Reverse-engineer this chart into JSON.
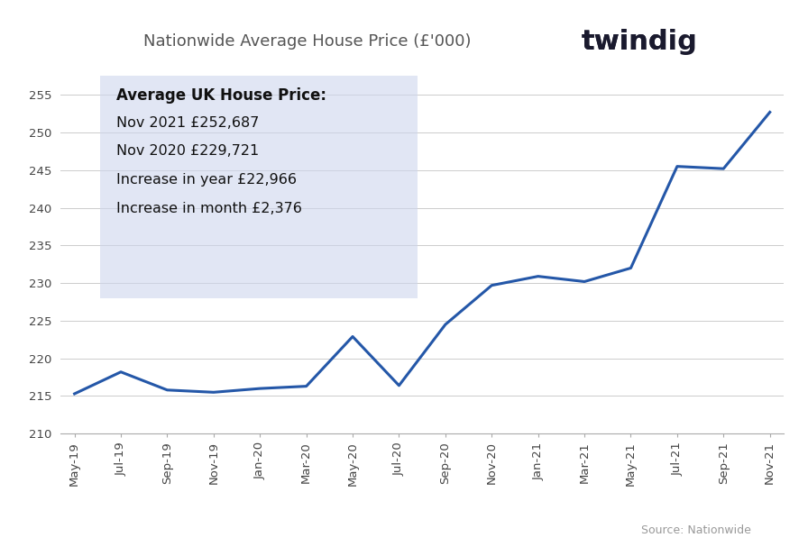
{
  "title": "Nationwide Average House Price (£'000)",
  "source_text": "Source: Nationwide",
  "x_labels": [
    "May-19",
    "Jul-19",
    "Sep-19",
    "Nov-19",
    "Jan-20",
    "Mar-20",
    "May-20",
    "Jul-20",
    "Sep-20",
    "Nov-20",
    "Jan-21",
    "Mar-21",
    "May-21",
    "Jul-21",
    "Sep-21",
    "Nov-21"
  ],
  "y_values": [
    215.3,
    218.2,
    215.8,
    215.5,
    216.0,
    216.3,
    222.9,
    216.4,
    224.5,
    229.7,
    230.9,
    230.2,
    232.0,
    245.5,
    245.2,
    252.7
  ],
  "line_color": "#2457a8",
  "line_width": 2.2,
  "ylim": [
    210,
    258
  ],
  "yticks": [
    210,
    215,
    220,
    225,
    230,
    235,
    240,
    245,
    250,
    255
  ],
  "background_color": "#ffffff",
  "annotation_box_color": "#cdd6ed",
  "annotation_lines": [
    "Average UK House Price:",
    "Nov 2021 £252,687",
    "Nov 2020 £229,721",
    "Increase in year £22,966",
    "Increase in month £2,376"
  ],
  "title_fontsize": 13,
  "tick_fontsize": 9.5,
  "annotation_bold_fontsize": 12,
  "annotation_fontsize": 11.5,
  "twindig_fontsize": 22
}
